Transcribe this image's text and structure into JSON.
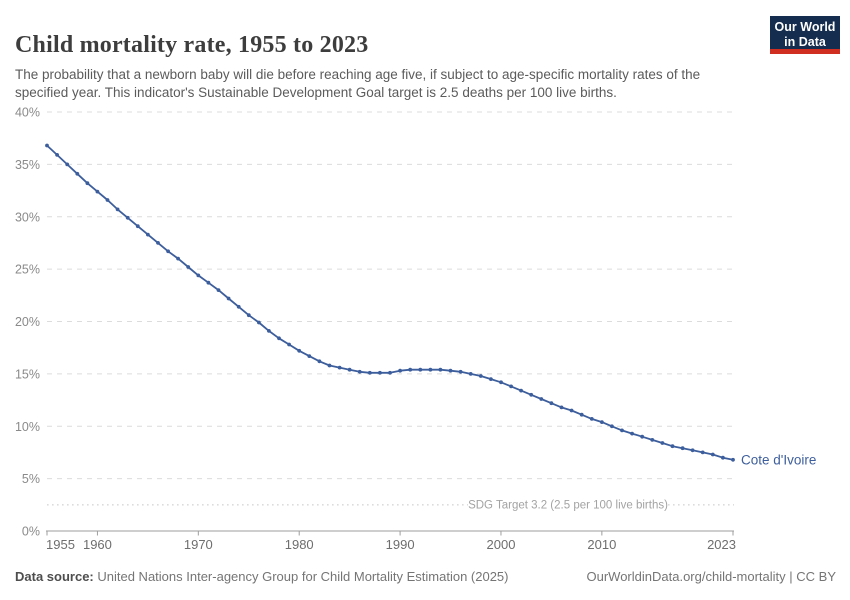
{
  "header": {
    "logo": {
      "line1": "Our World",
      "line2": "in Data"
    }
  },
  "footer": {
    "source_label": "Data source:",
    "source_text": " United Nations Inter-agency Group for Child Mortality Estimation (2025)",
    "link_text": "OurWorldinData.org/child-mortality | CC BY"
  },
  "colors": {
    "line": "#3d5e9c",
    "grid": "#dcdcdc",
    "axis": "#9e9e9e",
    "y_label": "#8a8a8a",
    "x_label": "#6e6e6e",
    "target_line": "#c6c6c6",
    "annotation": "#a3a3a3",
    "logo_bg": "#152d4f",
    "logo_stripe": "#cf2e21"
  },
  "chart_data": {
    "type": "line",
    "title": "Child mortality rate, 1955 to 2023",
    "subtitle": "The probability that a newborn baby will die before reaching age five, if subject to age-specific mortality rates of the specified year. This indicator's Sustainable Development Goal target is 2.5 deaths per 100 live births.",
    "xlabel": "",
    "ylabel": "",
    "x_range": [
      1955,
      2023
    ],
    "ylim": [
      0,
      40
    ],
    "grid": true,
    "legend_position": "entity-label-right-of-line",
    "x_ticks": [
      1955,
      1960,
      1970,
      1980,
      1990,
      2000,
      2010,
      2023
    ],
    "y_ticks": [
      0,
      5,
      10,
      15,
      20,
      25,
      30,
      35,
      40
    ],
    "y_tick_suffix": "%",
    "target": {
      "value": 2.5,
      "label": "SDG Target 3.2 (2.5 per 100 live births)"
    },
    "x": [
      1955,
      1956,
      1957,
      1958,
      1959,
      1960,
      1961,
      1962,
      1963,
      1964,
      1965,
      1966,
      1967,
      1968,
      1969,
      1970,
      1971,
      1972,
      1973,
      1974,
      1975,
      1976,
      1977,
      1978,
      1979,
      1980,
      1981,
      1982,
      1983,
      1984,
      1985,
      1986,
      1987,
      1988,
      1989,
      1990,
      1991,
      1992,
      1993,
      1994,
      1995,
      1996,
      1997,
      1998,
      1999,
      2000,
      2001,
      2002,
      2003,
      2004,
      2005,
      2006,
      2007,
      2008,
      2009,
      2010,
      2011,
      2012,
      2013,
      2014,
      2015,
      2016,
      2017,
      2018,
      2019,
      2020,
      2021,
      2022,
      2023
    ],
    "series": [
      {
        "name": "Cote d'Ivoire",
        "color": "#3d5e9c",
        "unit": "%",
        "values": [
          36.8,
          35.9,
          35.0,
          34.1,
          33.2,
          32.4,
          31.6,
          30.7,
          29.9,
          29.1,
          28.3,
          27.5,
          26.7,
          26.0,
          25.2,
          24.4,
          23.7,
          23.0,
          22.2,
          21.4,
          20.6,
          19.9,
          19.1,
          18.4,
          17.8,
          17.2,
          16.7,
          16.2,
          15.8,
          15.6,
          15.4,
          15.2,
          15.1,
          15.1,
          15.1,
          15.3,
          15.4,
          15.4,
          15.4,
          15.4,
          15.3,
          15.2,
          15.0,
          14.8,
          14.5,
          14.2,
          13.8,
          13.4,
          13.0,
          12.6,
          12.2,
          11.8,
          11.5,
          11.1,
          10.7,
          10.4,
          10.0,
          9.6,
          9.3,
          9.0,
          8.7,
          8.4,
          8.1,
          7.9,
          7.7,
          7.5,
          7.3,
          7.0,
          6.8
        ]
      }
    ]
  }
}
